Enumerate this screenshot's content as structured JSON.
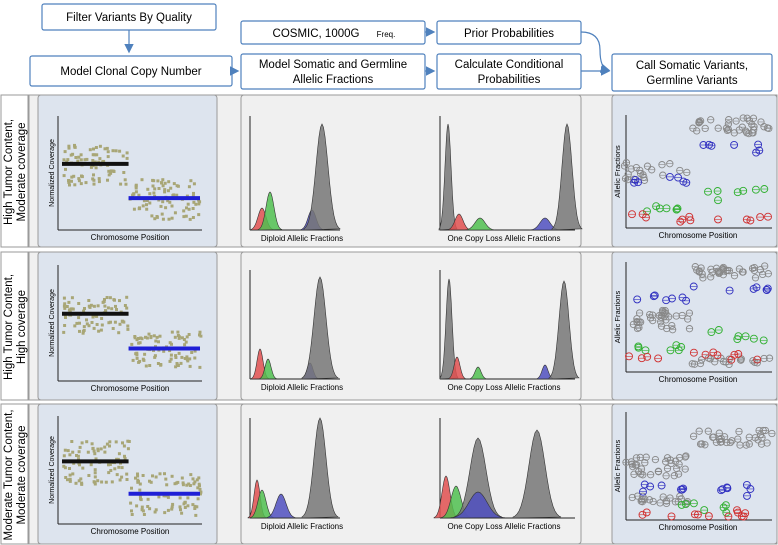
{
  "flow": {
    "filter": "Filter Variants By Quality",
    "model_cn": "Model Clonal Copy Number",
    "cosmic": "COSMIC, 1000G",
    "cosmic_small": "Freq.",
    "model_af_1": "Model Somatic and Germline",
    "model_af_2": "Allelic Fractions",
    "prior": "Prior Probabilities",
    "cond_1": "Calculate Conditional",
    "cond_2": "Probabilities",
    "call_1": "Call Somatic Variants,",
    "call_2": "Germline Variants"
  },
  "rows": [
    {
      "label_1": "High Tumor Content,",
      "label_2": "Moderate coverage"
    },
    {
      "label_1": "High Tumor Content,",
      "label_2": "High coverage"
    },
    {
      "label_1": "Moderate Tumor Content,",
      "label_2": "Moderate coverage"
    }
  ],
  "plot_labels": {
    "norm_cov": "Normalized Coverage",
    "chrom_pos": "Chromosome Position",
    "diploid": "Diploid Allelic Fractions",
    "one_copy": "One Copy Loss Allelic Fractions",
    "allelic": "Allelic Fractions"
  },
  "colors": {
    "panel_blue": "#dde4ee",
    "panel_gray": "#f0f0f0",
    "box_border": "#4f81bd",
    "arrow": "#4f81bd",
    "dots": "#a8a676",
    "black_line": "#111111",
    "blue_line": "#1f1fd6",
    "peak_gray": "#777777",
    "peak_red": "#e05050",
    "peak_green": "#50c050",
    "peak_blue": "#5050c0"
  }
}
